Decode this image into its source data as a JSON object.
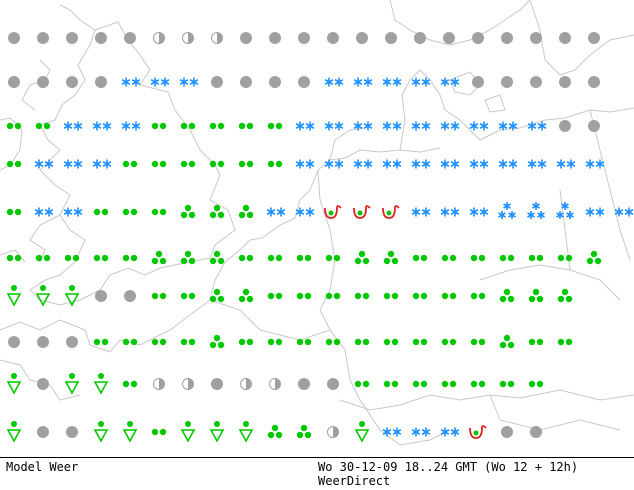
{
  "footer": {
    "model_label": "Model Weer",
    "datetime": "Wo 30-12-09 18..24 GMT (Wo 12 + 12h)",
    "source": "WeerDirect"
  },
  "colors": {
    "coastline": "#c8c8c8",
    "cloudy": "#a0a0a0",
    "rain": "#00c800",
    "snow": "#1e90ff",
    "freezing_rain": "#e02020",
    "background": "#ffffff"
  },
  "symbol_legend": {
    "C": "overcast-cloud-icon",
    "H": "half-cloud-icon",
    "R": "light-rain-icon",
    "T": "heavy-rain-icon",
    "V": "rain-shower-icon",
    "S": "snow-icon",
    "B": "heavy-snow-icon",
    "F": "freezing-rain-icon"
  },
  "weather_rows": [
    "CCCCCHHHCCCCCCCCCCCCC",
    "CCCCSSSCCCCSSSSSCCCCC",
    "RRSSSRRRRRSSSSSSSSSCC",
    "RSSSRRRRRRSSSSSSSSSSS",
    "RSSRRRTTTSSFFFSSSBBBSS",
    "RRRRRTTTRRRRTTRRRRRRT",
    "VVVCCRRTTRRRRRRRRTTT",
    "CCCRRRRTRRRRRRRRRTRR",
    "VCVVRHHCHHCCRRRRRRR",
    "VCCVVRVVVTTHVSSSFCC"
  ]
}
